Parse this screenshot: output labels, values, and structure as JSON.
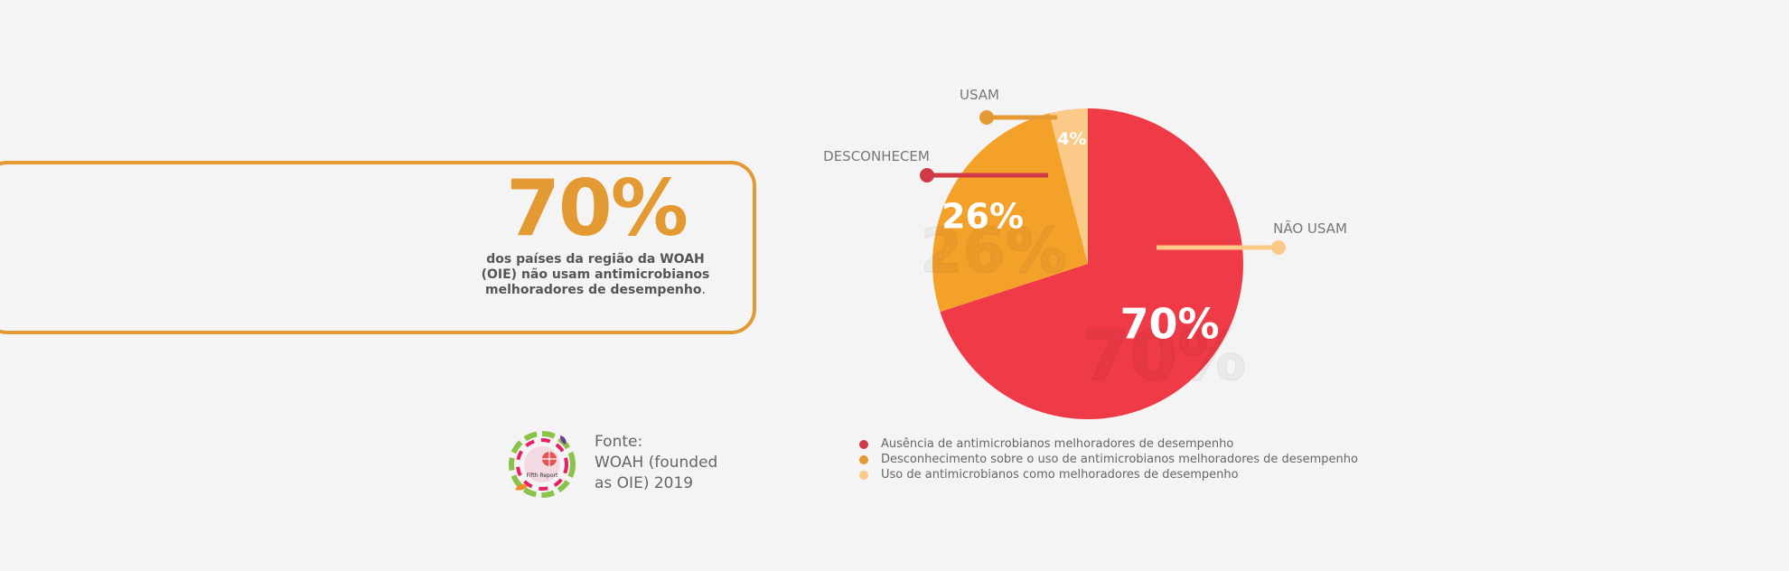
{
  "stat": {
    "value": "70%",
    "desc_bold": "dos países da região da WOAH (OIE) não usam antimicrobianos melhoradores de desempenho",
    "desc_tail": "."
  },
  "source": {
    "label": "Fonte:",
    "line1": "WOAH (founded",
    "line2": "as OIE) 2019",
    "logo_text": "Fifth Report"
  },
  "chart_data": {
    "type": "pie",
    "slices": [
      {
        "label": "NÃO USAM",
        "value": 70,
        "display": "70%",
        "color": "#ef3b47",
        "legend": "Ausência de antimicrobianos melhoradores de desempenho"
      },
      {
        "label": "DESCONHECEM",
        "value": 26,
        "display": "26%",
        "color": "#f4a12a",
        "legend": "Desconhecimento sobre o uso de antimicrobianos melhoradores de desempenho"
      },
      {
        "label": "USAM",
        "value": 4,
        "display": "4%",
        "color": "#fbca88",
        "legend": "Uso de antimicrobianos como melhoradores de desempenho"
      }
    ],
    "legend_dot_colors": [
      "#cf3a46",
      "#e39a32",
      "#fbca88"
    ],
    "callout_colors": [
      "#fbca88",
      "#cf3a46",
      "#e39a32"
    ]
  }
}
